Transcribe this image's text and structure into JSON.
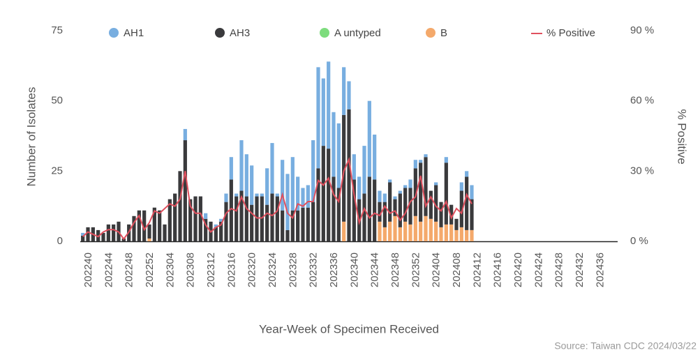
{
  "chart_data": {
    "type": "bar",
    "stacked": true,
    "y_label": "Number of Isolates",
    "y2_label": "% Positive",
    "x_label": "Year-Week of Specimen Received",
    "source": "Source: Taiwan CDC 2024/03/22",
    "categories": [
      null,
      "202240",
      null,
      null,
      null,
      "202244",
      null,
      null,
      null,
      "202248",
      null,
      null,
      null,
      "202252",
      null,
      null,
      null,
      "202304",
      null,
      null,
      null,
      "202308",
      null,
      null,
      null,
      "202312",
      null,
      null,
      null,
      "202316",
      null,
      null,
      null,
      "202320",
      null,
      null,
      null,
      "202324",
      null,
      null,
      null,
      "202328",
      null,
      null,
      null,
      "202332",
      null,
      null,
      null,
      "202336",
      null,
      null,
      null,
      "202340",
      null,
      null,
      null,
      "202344",
      null,
      null,
      null,
      "202348",
      null,
      null,
      null,
      "202352",
      null,
      null,
      null,
      "202404",
      null,
      null,
      null,
      "202408",
      null,
      null,
      null,
      "202412",
      null,
      null,
      null,
      "202416",
      null,
      null,
      null,
      "202420",
      null,
      null,
      null,
      "202424",
      null,
      null,
      null,
      "202428",
      null,
      null,
      null,
      "202432",
      null,
      null,
      null,
      "202436",
      null,
      null,
      null
    ],
    "series": [
      {
        "name": "AH1",
        "color": "#78aee0",
        "values": [
          1,
          0,
          0,
          0,
          0,
          0,
          0,
          0,
          0,
          0,
          0,
          0,
          0,
          0,
          0,
          0,
          0,
          0,
          0,
          0,
          4,
          0,
          0,
          0,
          2,
          0,
          1,
          1,
          3,
          8,
          1,
          18,
          15,
          14,
          1,
          1,
          13,
          18,
          1,
          18,
          20,
          19,
          12,
          7,
          8,
          22,
          36,
          24,
          31,
          23,
          23,
          17,
          10,
          9,
          8,
          17,
          27,
          16,
          4,
          3,
          1,
          1,
          1,
          1,
          3,
          3,
          1,
          1,
          0,
          1,
          0,
          2,
          0,
          0,
          3,
          2,
          5,
          null,
          null,
          null,
          null,
          null,
          null,
          null,
          null,
          null,
          null,
          null,
          null,
          null,
          null,
          null,
          null,
          null,
          null,
          null,
          null,
          null,
          null,
          null,
          null,
          null,
          null,
          null,
          null
        ]
      },
      {
        "name": "AH3",
        "color": "#3a3a3c",
        "values": [
          2,
          5,
          5,
          4,
          3,
          6,
          6,
          7,
          1,
          6,
          9,
          11,
          11,
          5,
          12,
          11,
          6,
          15,
          17,
          25,
          36,
          15,
          16,
          16,
          8,
          7,
          5,
          7,
          14,
          22,
          16,
          18,
          16,
          13,
          16,
          16,
          13,
          17,
          16,
          11,
          4,
          11,
          11,
          12,
          12,
          14,
          26,
          34,
          33,
          23,
          19,
          38,
          47,
          22,
          15,
          17,
          23,
          22,
          7,
          9,
          14,
          6,
          12,
          12,
          13,
          17,
          21,
          21,
          10,
          13,
          9,
          22,
          7,
          4,
          13,
          19,
          11,
          null,
          null,
          null,
          null,
          null,
          null,
          null,
          null,
          null,
          null,
          null,
          null,
          null,
          null,
          null,
          null,
          null,
          null,
          null,
          null,
          null,
          null,
          null,
          null,
          null,
          null,
          null,
          null
        ]
      },
      {
        "name": "A untyped",
        "color": "#7ddc7d",
        "values": [
          0,
          0,
          0,
          0,
          0,
          0,
          0,
          0,
          0,
          0,
          0,
          0,
          0,
          0,
          0,
          0,
          0,
          0,
          0,
          0,
          0,
          0,
          0,
          0,
          0,
          0,
          0,
          0,
          0,
          0,
          0,
          0,
          0,
          0,
          0,
          0,
          0,
          0,
          0,
          0,
          0,
          0,
          0,
          0,
          0,
          0,
          0,
          0,
          0,
          0,
          0,
          0,
          0,
          0,
          0,
          0,
          0,
          0,
          0,
          0,
          0,
          0,
          0,
          0,
          0,
          0,
          0,
          0,
          0,
          0,
          0,
          0,
          0,
          0,
          0,
          0,
          0,
          null,
          null,
          null,
          null,
          null,
          null,
          null,
          null,
          null,
          null,
          null,
          null,
          null,
          null,
          null,
          null,
          null,
          null,
          null,
          null,
          null,
          null,
          null,
          null,
          null,
          null,
          null,
          null
        ]
      },
      {
        "name": "B",
        "color": "#f4a96b",
        "values": [
          0,
          0,
          0,
          0,
          0,
          0,
          0,
          0,
          0,
          0,
          0,
          0,
          0,
          1,
          0,
          0,
          0,
          0,
          0,
          0,
          0,
          0,
          0,
          0,
          0,
          0,
          0,
          0,
          0,
          0,
          0,
          0,
          0,
          0,
          0,
          0,
          0,
          0,
          0,
          0,
          0,
          0,
          0,
          0,
          0,
          0,
          0,
          0,
          0,
          0,
          0,
          7,
          0,
          0,
          0,
          0,
          0,
          0,
          7,
          5,
          7,
          9,
          5,
          7,
          6,
          9,
          7,
          9,
          8,
          7,
          5,
          6,
          6,
          4,
          5,
          4,
          4,
          null,
          null,
          null,
          null,
          null,
          null,
          null,
          null,
          null,
          null,
          null,
          null,
          null,
          null,
          null,
          null,
          null,
          null,
          null,
          null,
          null,
          null,
          null,
          null,
          null,
          null,
          null,
          null
        ]
      },
      {
        "name": "% Positive",
        "color": "#e0505e",
        "type": "line",
        "axis": "y2",
        "values": [
          2,
          4,
          3,
          2,
          4,
          5,
          5,
          4,
          1,
          4,
          8,
          11,
          5,
          8,
          13,
          12,
          14,
          16,
          15,
          18,
          30,
          15,
          12,
          12,
          7,
          4,
          6,
          7,
          12,
          14,
          13,
          19,
          14,
          12,
          10,
          10,
          12,
          11,
          13,
          20,
          12,
          10,
          16,
          15,
          17,
          17,
          26,
          24,
          27,
          20,
          17,
          30,
          35,
          20,
          8,
          14,
          10,
          12,
          11,
          15,
          12,
          13,
          9,
          12,
          17,
          19,
          28,
          15,
          19,
          15,
          13,
          17,
          10,
          14,
          12,
          20,
          16,
          null,
          null,
          null,
          null,
          null,
          null,
          null,
          null,
          null,
          null,
          null,
          null,
          null,
          null,
          null,
          null,
          null,
          null,
          null,
          null,
          null,
          null,
          null,
          null,
          null,
          null,
          null,
          null
        ]
      }
    ],
    "ylim": [
      0,
      75
    ],
    "yticks": [
      0,
      25,
      50,
      75
    ],
    "y2lim": [
      0,
      90
    ],
    "y2ticks": [
      {
        "value": 0,
        "label": "0 %"
      },
      {
        "value": 30,
        "label": "30 %"
      },
      {
        "value": 60,
        "label": "60 %"
      },
      {
        "value": 90,
        "label": "90 %"
      }
    ],
    "grid": false,
    "legend": "top"
  }
}
